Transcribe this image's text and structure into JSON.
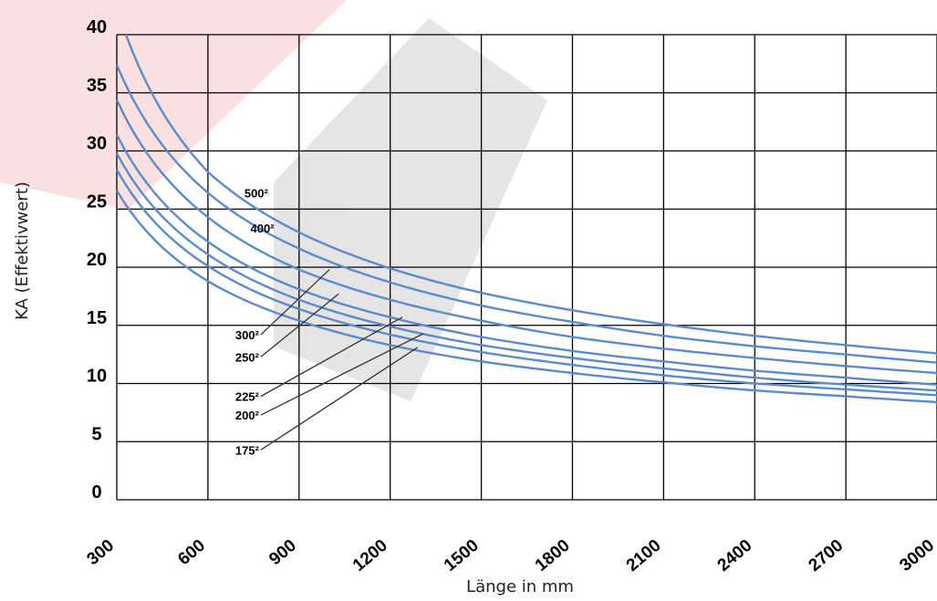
{
  "chart_data": {
    "type": "line",
    "title": "",
    "xlabel": "Länge in mm",
    "ylabel": "KA (Effektivwert)",
    "xlim": [
      300,
      3000
    ],
    "ylim": [
      0,
      40
    ],
    "x_ticks": [
      "300",
      "600",
      "900",
      "1200",
      "1500",
      "1800",
      "2100",
      "2400",
      "2700",
      "3000"
    ],
    "y_ticks": [
      "0",
      "5",
      "10",
      "15",
      "20",
      "25",
      "30",
      "35",
      "40"
    ],
    "grid": true,
    "legend": "none",
    "series_color": "#5b8bc9",
    "series": [
      {
        "name": "500²",
        "x": [
          330,
          600,
          900,
          1200,
          1500,
          1800,
          2100,
          2400,
          2700,
          3000
        ],
        "y": [
          40.0,
          28.2,
          23.0,
          19.9,
          17.8,
          16.3,
          15.1,
          14.1,
          13.3,
          12.6
        ]
      },
      {
        "name": "400²",
        "x": [
          300,
          600,
          900,
          1200,
          1500,
          1800,
          2100,
          2400,
          2700,
          3000
        ],
        "y": [
          37.4,
          26.4,
          21.6,
          18.7,
          16.7,
          15.3,
          14.1,
          13.2,
          12.5,
          11.8
        ]
      },
      {
        "name": "300²",
        "x": [
          300,
          600,
          900,
          1200,
          1500,
          1800,
          2100,
          2400,
          2700,
          3000
        ],
        "y": [
          34.4,
          24.3,
          19.8,
          17.2,
          15.4,
          14.0,
          13.0,
          12.2,
          11.5,
          10.9
        ]
      },
      {
        "name": "250²",
        "x": [
          300,
          600,
          900,
          1200,
          1500,
          1800,
          2100,
          2400,
          2700,
          3000
        ],
        "y": [
          31.4,
          22.2,
          18.1,
          15.7,
          14.0,
          12.8,
          11.9,
          11.1,
          10.5,
          9.9
        ]
      },
      {
        "name": "225²",
        "x": [
          300,
          600,
          900,
          1200,
          1500,
          1800,
          2100,
          2400,
          2700,
          3000
        ],
        "y": [
          29.8,
          21.1,
          17.2,
          14.9,
          13.3,
          12.2,
          11.3,
          10.5,
          9.9,
          9.4
        ]
      },
      {
        "name": "200²",
        "x": [
          300,
          600,
          900,
          1200,
          1500,
          1800,
          2100,
          2400,
          2700,
          3000
        ],
        "y": [
          28.4,
          20.1,
          16.4,
          14.2,
          12.7,
          11.6,
          10.7,
          10.0,
          9.5,
          9.0
        ]
      },
      {
        "name": "175²",
        "x": [
          300,
          600,
          900,
          1200,
          1500,
          1800,
          2100,
          2400,
          2700,
          3000
        ],
        "y": [
          26.6,
          18.8,
          15.4,
          13.3,
          11.9,
          10.9,
          10.1,
          9.4,
          8.9,
          8.4
        ]
      }
    ],
    "label_anchors": [
      {
        "series": "500²",
        "x": 720,
        "y": 26.0,
        "leader": null
      },
      {
        "series": "400²",
        "x": 740,
        "y": 23.0,
        "leader": null
      },
      {
        "series": "300²",
        "x": 690,
        "y": 13.8,
        "leader": [
          1000,
          19.8
        ]
      },
      {
        "series": "250²",
        "x": 690,
        "y": 11.9,
        "leader": [
          1030,
          17.7
        ]
      },
      {
        "series": "225²",
        "x": 690,
        "y": 8.5,
        "leader": [
          1240,
          15.7
        ]
      },
      {
        "series": "200²",
        "x": 690,
        "y": 6.9,
        "leader": [
          1310,
          14.3
        ]
      },
      {
        "series": "175²",
        "x": 690,
        "y": 3.9,
        "leader": [
          1290,
          13.1
        ]
      }
    ]
  }
}
